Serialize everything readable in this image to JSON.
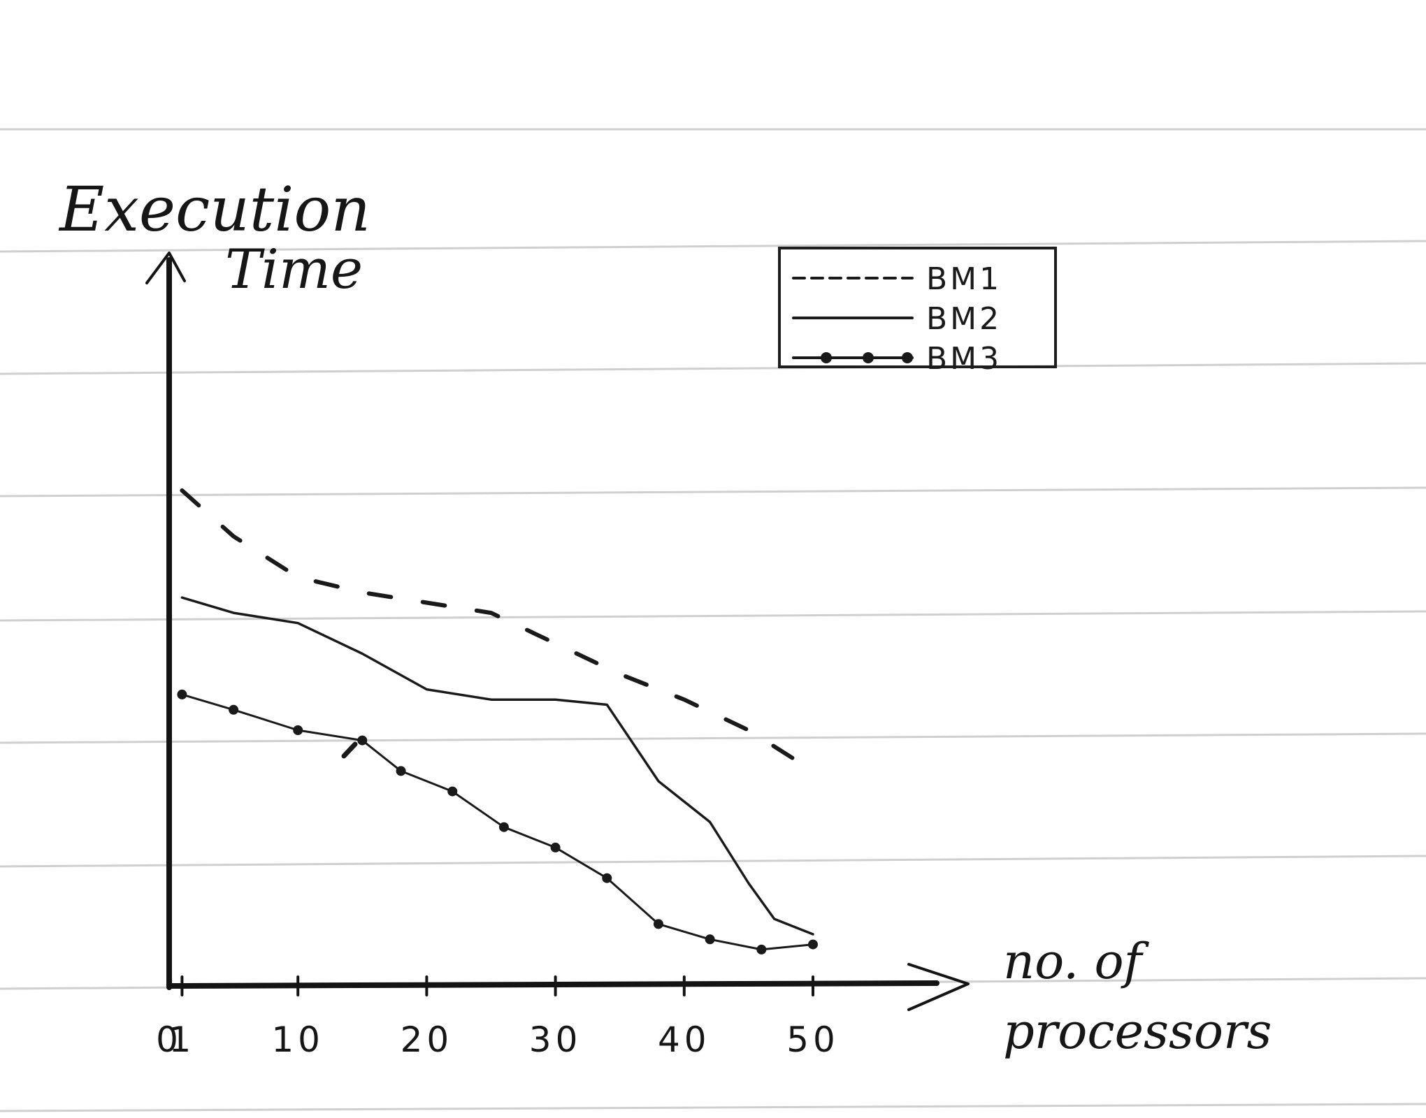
{
  "chart_data": {
    "type": "line",
    "title": "",
    "ylabel": "Execution Time",
    "xlabel": "no. of processors",
    "xticks": [
      "0",
      "1",
      "10",
      "20",
      "30",
      "40",
      "50"
    ],
    "xlim": [
      0,
      50
    ],
    "ylim": [
      0,
      100
    ],
    "grid": false,
    "legend_position": "top-right",
    "series": [
      {
        "name": "BM1",
        "style": "dashed",
        "x": [
          1,
          5,
          10,
          15,
          20,
          25,
          30,
          35,
          40,
          45,
          50
        ],
        "y": [
          97,
          88,
          80,
          77,
          75,
          73,
          67,
          61,
          56,
          50,
          42
        ]
      },
      {
        "name": "BM2",
        "style": "solid",
        "x": [
          1,
          5,
          10,
          15,
          20,
          25,
          30,
          34,
          38,
          42,
          45,
          47,
          50
        ],
        "y": [
          76,
          73,
          71,
          65,
          58,
          56,
          56,
          55,
          40,
          32,
          20,
          13,
          10
        ]
      },
      {
        "name": "BM3",
        "style": "solid-with-dots",
        "x": [
          1,
          5,
          10,
          15,
          18,
          22,
          26,
          30,
          34,
          38,
          42,
          46,
          50
        ],
        "y": [
          57,
          54,
          50,
          48,
          42,
          38,
          31,
          27,
          21,
          12,
          9,
          7,
          8
        ]
      }
    ]
  }
}
